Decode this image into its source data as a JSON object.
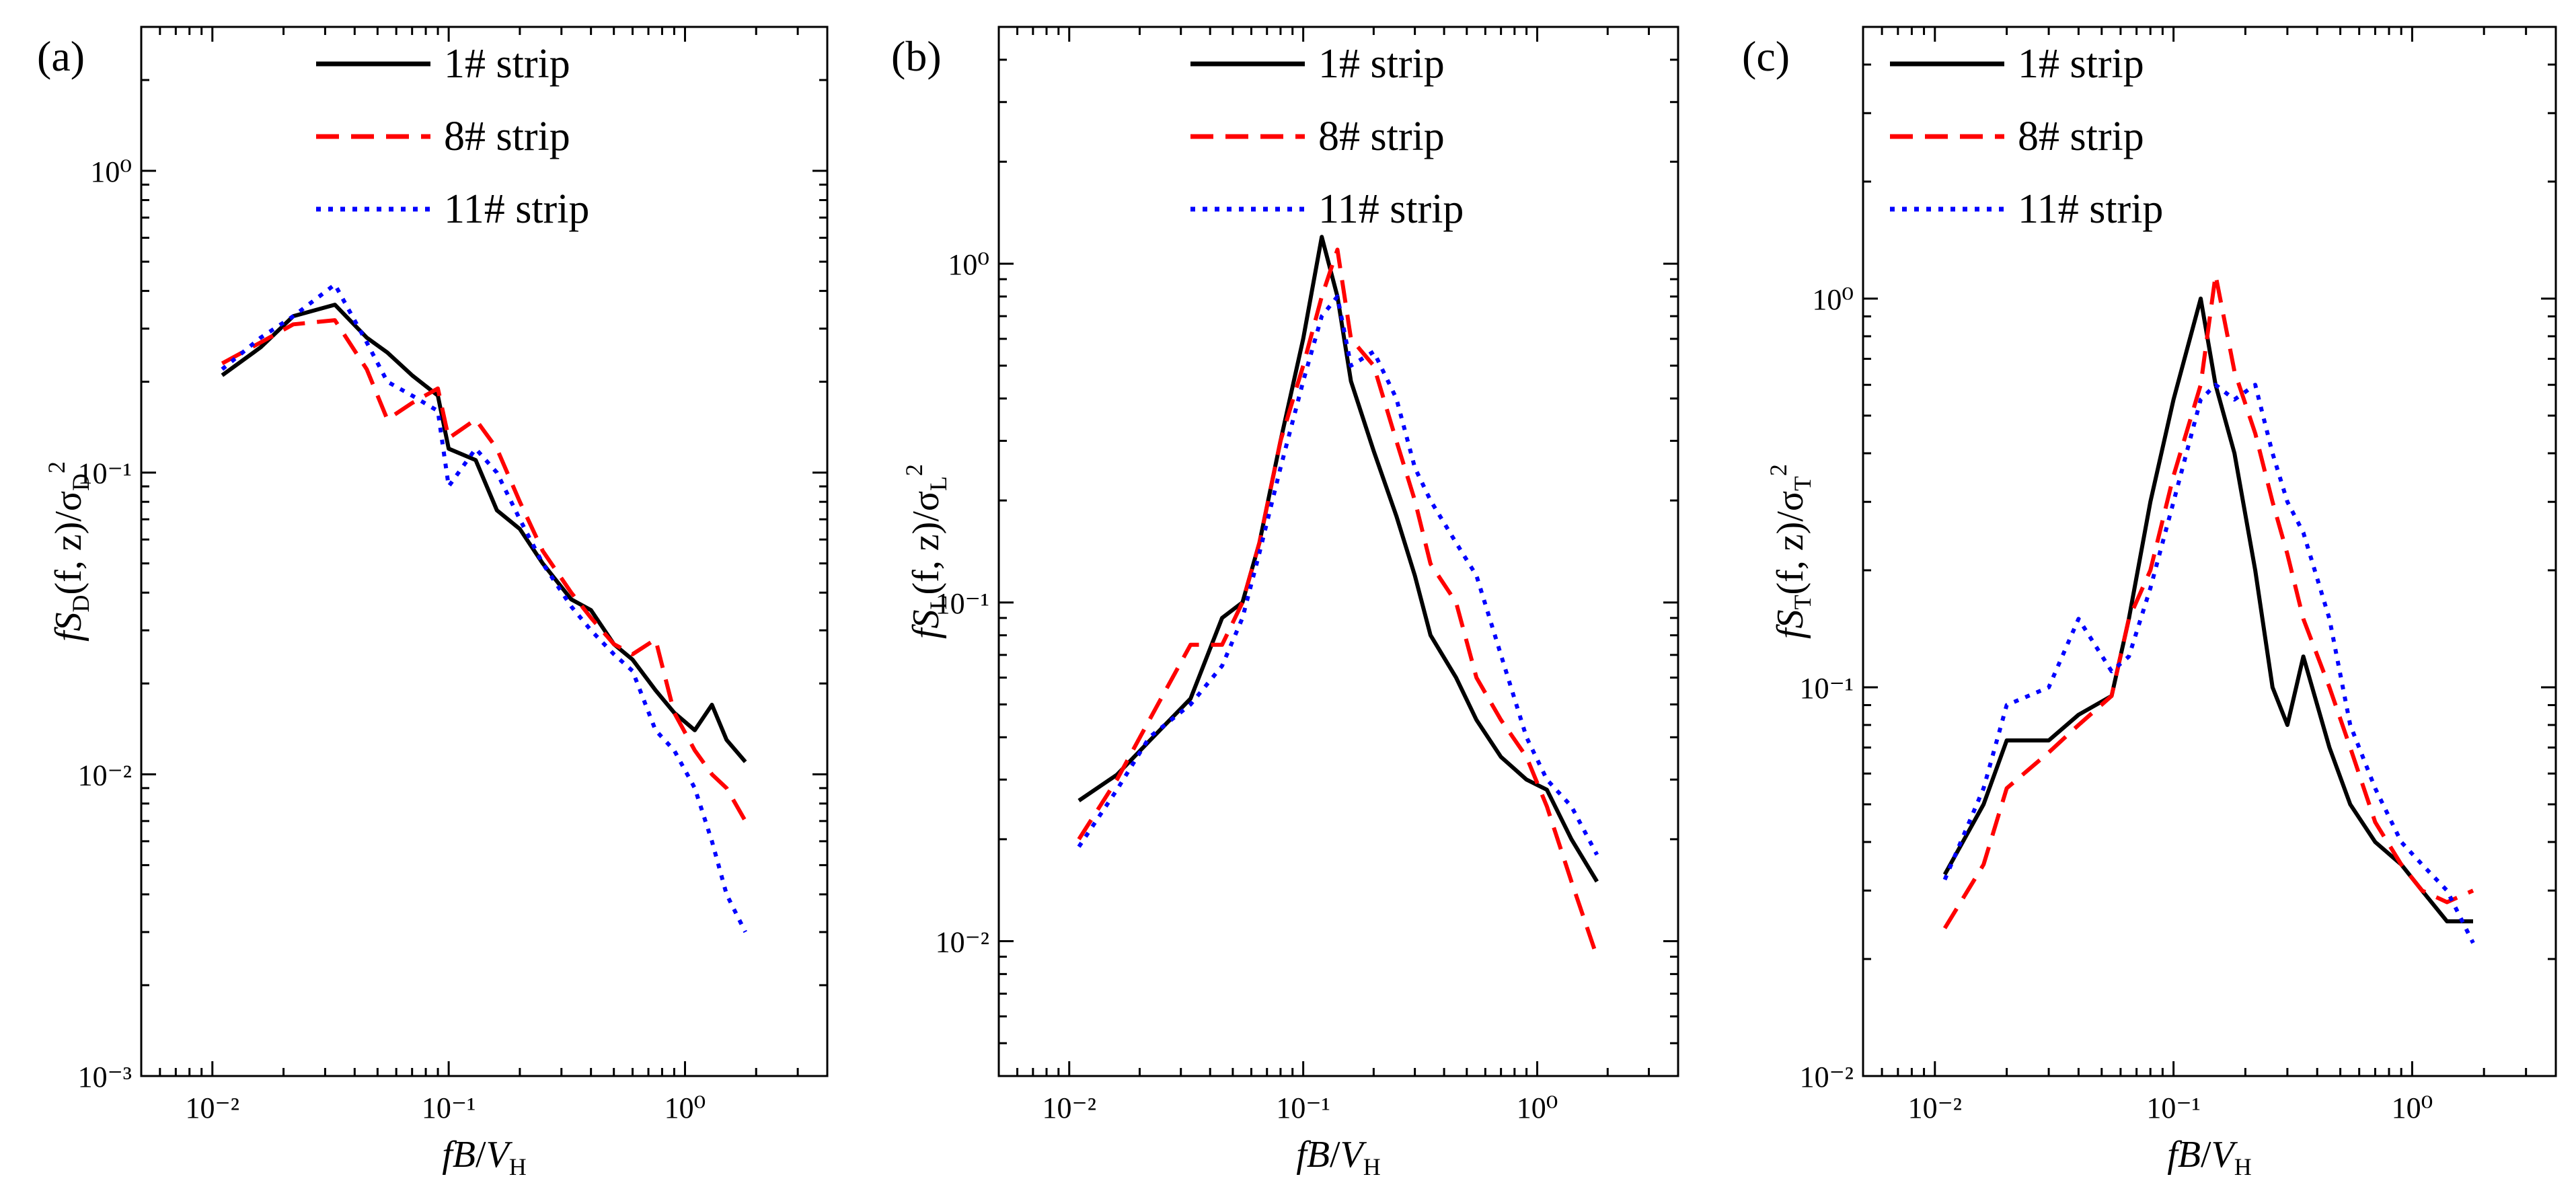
{
  "figure": {
    "panels": [
      {
        "label": "(a)",
        "xlabel": {
          "pre": "fB",
          "mid": "/",
          "var": "V",
          "sub": "H"
        },
        "ylabel": {
          "f": "f",
          "S": "S",
          "sub1": "D",
          "args": "(f, z)/σ",
          "sub2": "D",
          "sup": "2"
        },
        "yticks": [
          "10⁻³",
          "10⁻²",
          "10⁻¹",
          "10⁰"
        ],
        "xticks": [
          "10⁻²",
          "10⁻¹",
          "10⁰"
        ]
      },
      {
        "label": "(b)",
        "xlabel": {
          "pre": "fB",
          "mid": "/",
          "var": "V",
          "sub": "H"
        },
        "ylabel": {
          "f": "f",
          "S": "S",
          "sub1": "L",
          "args": "(f, z)/σ",
          "sub2": "L",
          "sup": "2"
        },
        "yticks": [
          "10⁻²",
          "10⁻¹",
          "10⁰"
        ],
        "xticks": [
          "10⁻²",
          "10⁻¹",
          "10⁰"
        ]
      },
      {
        "label": "(c)",
        "xlabel": {
          "pre": "fB",
          "mid": "/",
          "var": "V",
          "sub": "H"
        },
        "ylabel": {
          "f": "f",
          "S": "S",
          "sub1": "T",
          "args": "(f, z)/σ",
          "sub2": "T",
          "sup": "2"
        },
        "yticks": [
          "10⁻²",
          "10⁻¹",
          "10⁰"
        ],
        "xticks": [
          "10⁻²",
          "10⁻¹",
          "10⁰"
        ]
      }
    ],
    "legend": [
      {
        "label": "1# strip",
        "color": "#000000",
        "style": "solid"
      },
      {
        "label": "8# strip",
        "color": "#ff0000",
        "style": "dashed"
      },
      {
        "label": "11# strip",
        "color": "#0000ff",
        "style": "dotted"
      }
    ]
  },
  "chart_data": [
    {
      "type": "line",
      "title": "(a)",
      "xlabel": "fB/V_H",
      "ylabel": "fS_D(f,z)/σ_D^2",
      "xscale": "log",
      "yscale": "log",
      "xlim": [
        0.005,
        4
      ],
      "ylim": [
        0.001,
        3
      ],
      "series": [
        {
          "name": "1# strip",
          "color": "#000000",
          "points": [
            [
              0.011,
              0.21
            ],
            [
              0.016,
              0.26
            ],
            [
              0.022,
              0.33
            ],
            [
              0.033,
              0.36
            ],
            [
              0.045,
              0.28
            ],
            [
              0.055,
              0.25
            ],
            [
              0.07,
              0.21
            ],
            [
              0.09,
              0.18
            ],
            [
              0.1,
              0.12
            ],
            [
              0.13,
              0.11
            ],
            [
              0.16,
              0.075
            ],
            [
              0.2,
              0.065
            ],
            [
              0.25,
              0.05
            ],
            [
              0.33,
              0.038
            ],
            [
              0.4,
              0.035
            ],
            [
              0.5,
              0.027
            ],
            [
              0.6,
              0.024
            ],
            [
              0.75,
              0.019
            ],
            [
              0.9,
              0.016
            ],
            [
              1.1,
              0.014
            ],
            [
              1.3,
              0.017
            ],
            [
              1.5,
              0.013
            ],
            [
              1.8,
              0.011
            ]
          ]
        },
        {
          "name": "8# strip",
          "color": "#ff0000",
          "points": [
            [
              0.011,
              0.23
            ],
            [
              0.016,
              0.27
            ],
            [
              0.022,
              0.31
            ],
            [
              0.033,
              0.32
            ],
            [
              0.045,
              0.22
            ],
            [
              0.055,
              0.15
            ],
            [
              0.07,
              0.17
            ],
            [
              0.09,
              0.19
            ],
            [
              0.1,
              0.13
            ],
            [
              0.13,
              0.15
            ],
            [
              0.16,
              0.12
            ],
            [
              0.2,
              0.08
            ],
            [
              0.25,
              0.055
            ],
            [
              0.33,
              0.04
            ],
            [
              0.4,
              0.033
            ],
            [
              0.5,
              0.027
            ],
            [
              0.6,
              0.025
            ],
            [
              0.75,
              0.028
            ],
            [
              0.9,
              0.016
            ],
            [
              1.1,
              0.012
            ],
            [
              1.3,
              0.01
            ],
            [
              1.5,
              0.009
            ],
            [
              1.8,
              0.007
            ]
          ]
        },
        {
          "name": "11# strip",
          "color": "#0000ff",
          "points": [
            [
              0.011,
              0.22
            ],
            [
              0.016,
              0.28
            ],
            [
              0.022,
              0.33
            ],
            [
              0.033,
              0.42
            ],
            [
              0.045,
              0.27
            ],
            [
              0.055,
              0.2
            ],
            [
              0.07,
              0.18
            ],
            [
              0.09,
              0.16
            ],
            [
              0.1,
              0.09
            ],
            [
              0.13,
              0.12
            ],
            [
              0.16,
              0.1
            ],
            [
              0.2,
              0.07
            ],
            [
              0.25,
              0.05
            ],
            [
              0.33,
              0.036
            ],
            [
              0.4,
              0.03
            ],
            [
              0.5,
              0.025
            ],
            [
              0.6,
              0.022
            ],
            [
              0.75,
              0.014
            ],
            [
              0.9,
              0.012
            ],
            [
              1.1,
              0.009
            ],
            [
              1.3,
              0.006
            ],
            [
              1.5,
              0.004
            ],
            [
              1.8,
              0.003
            ]
          ]
        }
      ]
    },
    {
      "type": "line",
      "title": "(b)",
      "xlabel": "fB/V_H",
      "ylabel": "fS_L(f,z)/σ_L^2",
      "xscale": "log",
      "yscale": "log",
      "xlim": [
        0.005,
        4
      ],
      "ylim": [
        0.004,
        5
      ],
      "series": [
        {
          "name": "1# strip",
          "color": "#000000",
          "points": [
            [
              0.011,
              0.026
            ],
            [
              0.016,
              0.031
            ],
            [
              0.022,
              0.039
            ],
            [
              0.033,
              0.052
            ],
            [
              0.045,
              0.09
            ],
            [
              0.055,
              0.1
            ],
            [
              0.065,
              0.15
            ],
            [
              0.08,
              0.3
            ],
            [
              0.1,
              0.6
            ],
            [
              0.12,
              1.2
            ],
            [
              0.14,
              0.8
            ],
            [
              0.16,
              0.45
            ],
            [
              0.2,
              0.28
            ],
            [
              0.25,
              0.18
            ],
            [
              0.3,
              0.12
            ],
            [
              0.35,
              0.08
            ],
            [
              0.45,
              0.06
            ],
            [
              0.55,
              0.045
            ],
            [
              0.7,
              0.035
            ],
            [
              0.9,
              0.03
            ],
            [
              1.1,
              0.028
            ],
            [
              1.4,
              0.02
            ],
            [
              1.8,
              0.015
            ]
          ]
        },
        {
          "name": "8# strip",
          "color": "#ff0000",
          "points": [
            [
              0.011,
              0.02
            ],
            [
              0.016,
              0.03
            ],
            [
              0.022,
              0.045
            ],
            [
              0.033,
              0.075
            ],
            [
              0.045,
              0.075
            ],
            [
              0.055,
              0.1
            ],
            [
              0.065,
              0.15
            ],
            [
              0.08,
              0.3
            ],
            [
              0.1,
              0.5
            ],
            [
              0.12,
              0.8
            ],
            [
              0.14,
              1.1
            ],
            [
              0.16,
              0.6
            ],
            [
              0.2,
              0.5
            ],
            [
              0.25,
              0.3
            ],
            [
              0.3,
              0.2
            ],
            [
              0.35,
              0.13
            ],
            [
              0.45,
              0.1
            ],
            [
              0.55,
              0.06
            ],
            [
              0.7,
              0.045
            ],
            [
              0.9,
              0.035
            ],
            [
              1.1,
              0.025
            ],
            [
              1.4,
              0.015
            ],
            [
              1.8,
              0.009
            ]
          ]
        },
        {
          "name": "11# strip",
          "color": "#0000ff",
          "points": [
            [
              0.011,
              0.019
            ],
            [
              0.016,
              0.028
            ],
            [
              0.022,
              0.04
            ],
            [
              0.033,
              0.05
            ],
            [
              0.045,
              0.065
            ],
            [
              0.055,
              0.09
            ],
            [
              0.065,
              0.14
            ],
            [
              0.08,
              0.25
            ],
            [
              0.1,
              0.45
            ],
            [
              0.12,
              0.7
            ],
            [
              0.14,
              0.8
            ],
            [
              0.16,
              0.5
            ],
            [
              0.2,
              0.55
            ],
            [
              0.25,
              0.4
            ],
            [
              0.3,
              0.25
            ],
            [
              0.35,
              0.2
            ],
            [
              0.45,
              0.15
            ],
            [
              0.55,
              0.12
            ],
            [
              0.7,
              0.07
            ],
            [
              0.9,
              0.04
            ],
            [
              1.1,
              0.03
            ],
            [
              1.4,
              0.025
            ],
            [
              1.8,
              0.018
            ]
          ]
        }
      ]
    },
    {
      "type": "line",
      "title": "(c)",
      "xlabel": "fB/V_H",
      "ylabel": "fS_T(f,z)/σ_T^2",
      "xscale": "log",
      "yscale": "log",
      "xlim": [
        0.005,
        4
      ],
      "ylim": [
        0.01,
        5
      ],
      "series": [
        {
          "name": "1# strip",
          "color": "#000000",
          "points": [
            [
              0.011,
              0.033
            ],
            [
              0.016,
              0.05
            ],
            [
              0.02,
              0.073
            ],
            [
              0.03,
              0.073
            ],
            [
              0.04,
              0.085
            ],
            [
              0.055,
              0.095
            ],
            [
              0.065,
              0.15
            ],
            [
              0.08,
              0.3
            ],
            [
              0.1,
              0.55
            ],
            [
              0.13,
              1.0
            ],
            [
              0.15,
              0.6
            ],
            [
              0.18,
              0.4
            ],
            [
              0.22,
              0.2
            ],
            [
              0.26,
              0.1
            ],
            [
              0.3,
              0.08
            ],
            [
              0.35,
              0.12
            ],
            [
              0.45,
              0.07
            ],
            [
              0.55,
              0.05
            ],
            [
              0.7,
              0.04
            ],
            [
              0.9,
              0.035
            ],
            [
              1.1,
              0.03
            ],
            [
              1.4,
              0.025
            ],
            [
              1.8,
              0.025
            ]
          ]
        },
        {
          "name": "8# strip",
          "color": "#ff0000",
          "points": [
            [
              0.011,
              0.024
            ],
            [
              0.016,
              0.035
            ],
            [
              0.02,
              0.055
            ],
            [
              0.03,
              0.068
            ],
            [
              0.04,
              0.08
            ],
            [
              0.055,
              0.095
            ],
            [
              0.065,
              0.15
            ],
            [
              0.08,
              0.2
            ],
            [
              0.1,
              0.35
            ],
            [
              0.13,
              0.6
            ],
            [
              0.15,
              1.15
            ],
            [
              0.18,
              0.65
            ],
            [
              0.22,
              0.45
            ],
            [
              0.26,
              0.3
            ],
            [
              0.3,
              0.22
            ],
            [
              0.35,
              0.15
            ],
            [
              0.45,
              0.1
            ],
            [
              0.55,
              0.07
            ],
            [
              0.7,
              0.045
            ],
            [
              0.9,
              0.035
            ],
            [
              1.1,
              0.03
            ],
            [
              1.4,
              0.028
            ],
            [
              1.8,
              0.03
            ]
          ]
        },
        {
          "name": "11# strip",
          "color": "#0000ff",
          "points": [
            [
              0.011,
              0.032
            ],
            [
              0.016,
              0.055
            ],
            [
              0.02,
              0.09
            ],
            [
              0.03,
              0.1
            ],
            [
              0.04,
              0.15
            ],
            [
              0.055,
              0.11
            ],
            [
              0.065,
              0.12
            ],
            [
              0.08,
              0.18
            ],
            [
              0.1,
              0.3
            ],
            [
              0.13,
              0.55
            ],
            [
              0.15,
              0.6
            ],
            [
              0.18,
              0.55
            ],
            [
              0.22,
              0.6
            ],
            [
              0.26,
              0.4
            ],
            [
              0.3,
              0.3
            ],
            [
              0.35,
              0.25
            ],
            [
              0.45,
              0.15
            ],
            [
              0.55,
              0.08
            ],
            [
              0.7,
              0.055
            ],
            [
              0.9,
              0.04
            ],
            [
              1.1,
              0.035
            ],
            [
              1.4,
              0.03
            ],
            [
              1.8,
              0.022
            ]
          ]
        }
      ]
    }
  ]
}
